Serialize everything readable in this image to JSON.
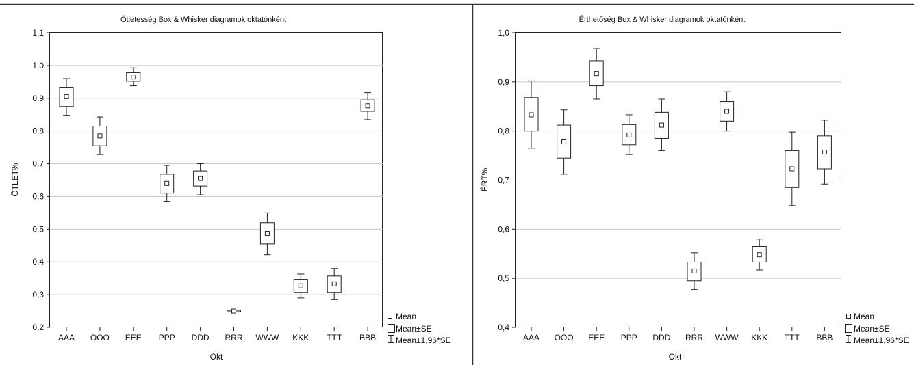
{
  "chart_data": [
    {
      "type": "box-whisker",
      "title": "Ötletesség Box & Whisker diagramok oktatónként",
      "xlabel": "Okt",
      "ylabel": "ÖTLET%",
      "ylim": [
        0.2,
        1.1
      ],
      "yticks": [
        "0,2",
        "0,3",
        "0,4",
        "0,5",
        "0,6",
        "0,7",
        "0,8",
        "0,9",
        "1,0",
        "1,1"
      ],
      "grid": true,
      "legend_position": "outside-bottom-right",
      "categories": [
        "AAA",
        "OOO",
        "EEE",
        "PPP",
        "DDD",
        "RRR",
        "WWW",
        "KKK",
        "TTT",
        "BBB"
      ],
      "mean": [
        0.905,
        0.785,
        0.965,
        0.64,
        0.655,
        0.25,
        0.487,
        0.327,
        0.333,
        0.877
      ],
      "mean_minus_se": [
        0.875,
        0.755,
        0.952,
        0.61,
        0.632,
        0.248,
        0.455,
        0.307,
        0.307,
        0.86
      ],
      "mean_plus_se": [
        0.932,
        0.815,
        0.978,
        0.668,
        0.678,
        0.252,
        0.52,
        0.347,
        0.357,
        0.895
      ],
      "mean_minus_196se": [
        0.848,
        0.728,
        0.938,
        0.585,
        0.605,
        0.248,
        0.422,
        0.29,
        0.285,
        0.835
      ],
      "mean_plus_196se": [
        0.96,
        0.843,
        0.993,
        0.695,
        0.7,
        0.252,
        0.55,
        0.363,
        0.38,
        0.917
      ]
    },
    {
      "type": "box-whisker",
      "title": "Érthetőség Box & Whisker diagramok oktatónként",
      "xlabel": "Okt",
      "ylabel": "ÉRT%",
      "ylim": [
        0.4,
        1.0
      ],
      "yticks": [
        "0,4",
        "0,5",
        "0,6",
        "0,7",
        "0,8",
        "0,9",
        "1,0"
      ],
      "grid": true,
      "legend_position": "outside-bottom-right",
      "categories": [
        "AAA",
        "OOO",
        "EEE",
        "PPP",
        "DDD",
        "RRR",
        "WWW",
        "KKK",
        "TTT",
        "BBB"
      ],
      "mean": [
        0.833,
        0.778,
        0.917,
        0.792,
        0.812,
        0.515,
        0.84,
        0.548,
        0.723,
        0.757
      ],
      "mean_minus_se": [
        0.8,
        0.745,
        0.892,
        0.772,
        0.785,
        0.495,
        0.82,
        0.533,
        0.685,
        0.723
      ],
      "mean_plus_se": [
        0.868,
        0.812,
        0.943,
        0.813,
        0.838,
        0.533,
        0.86,
        0.565,
        0.76,
        0.79
      ],
      "mean_minus_196se": [
        0.765,
        0.712,
        0.865,
        0.752,
        0.76,
        0.477,
        0.8,
        0.517,
        0.648,
        0.692
      ],
      "mean_plus_196se": [
        0.902,
        0.843,
        0.968,
        0.833,
        0.865,
        0.552,
        0.88,
        0.58,
        0.798,
        0.822
      ]
    }
  ],
  "legend": {
    "items": [
      "Mean",
      "Mean±SE",
      "Mean±1,96*SE"
    ],
    "items_right": [
      "Mean",
      "Mean±SE",
      "Mean±1,96*SE"
    ]
  }
}
